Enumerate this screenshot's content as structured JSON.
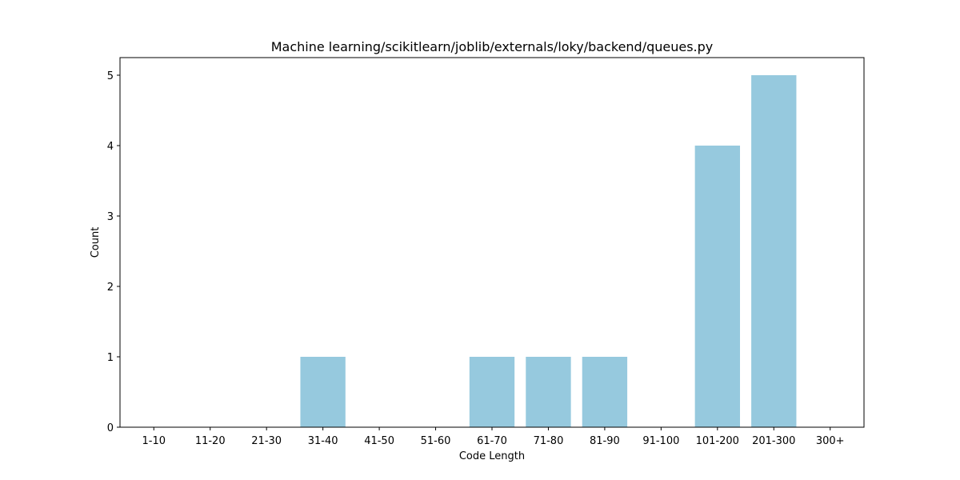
{
  "chart_data": {
    "type": "bar",
    "title": "Machine learning/scikitlearn/joblib/externals/loky/backend/queues.py",
    "xlabel": "Code Length",
    "ylabel": "Count",
    "categories": [
      "1-10",
      "11-20",
      "21-30",
      "31-40",
      "41-50",
      "51-60",
      "61-70",
      "71-80",
      "81-90",
      "91-100",
      "101-200",
      "201-300",
      "300+"
    ],
    "values": [
      0,
      0,
      0,
      1,
      0,
      0,
      1,
      1,
      1,
      0,
      4,
      5,
      0
    ],
    "yticks": [
      0,
      1,
      2,
      3,
      4,
      5
    ],
    "ylim": [
      0,
      5.25
    ],
    "grid": false,
    "bar_color": "#96c9de"
  }
}
